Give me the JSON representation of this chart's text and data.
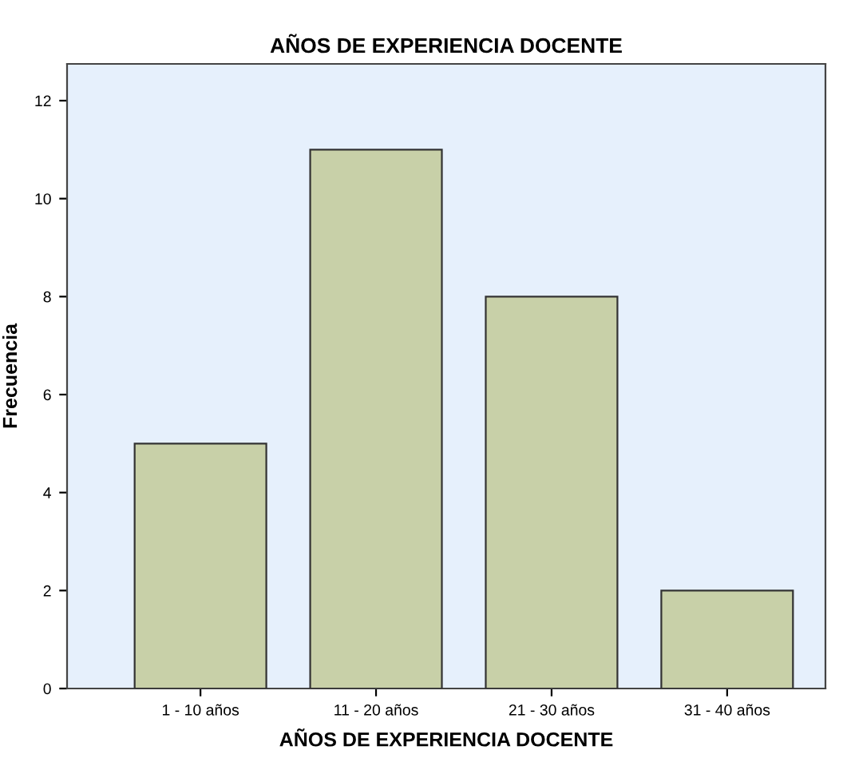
{
  "chart_data": {
    "type": "bar",
    "title": "AÑOS DE EXPERIENCIA DOCENTE",
    "xlabel": "AÑOS DE EXPERIENCIA DOCENTE",
    "ylabel": "Frecuencia",
    "categories": [
      "1 - 10 años",
      "11 - 20 años",
      "21 - 30 años",
      "31 - 40 años"
    ],
    "values": [
      5,
      11,
      8,
      2
    ],
    "color": "#c8d0a8",
    "ylim": [
      0,
      12.75
    ],
    "yticks": [
      0,
      2,
      4,
      6,
      8,
      10,
      12
    ],
    "grid": false
  }
}
